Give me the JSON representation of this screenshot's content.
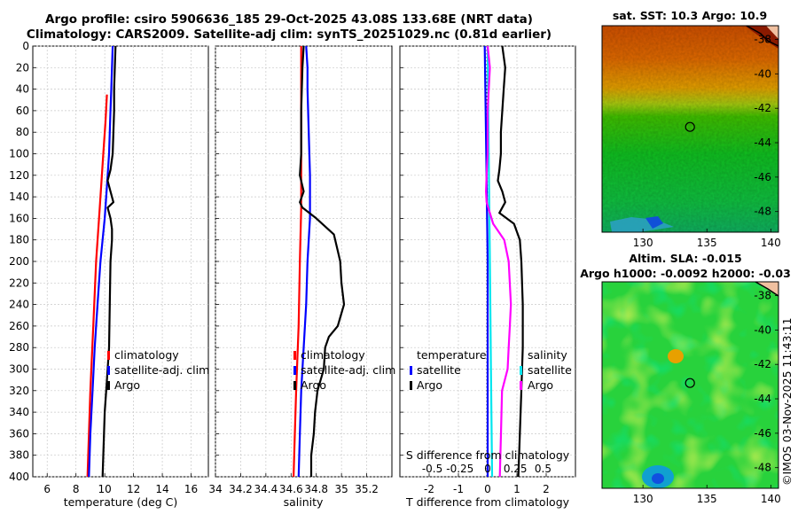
{
  "titles": {
    "line1": "Argo profile: csiro 5906636_185 29-Oct-2025 43.08S 133.68E (NRT data)",
    "line2": "Climatology: CARS2009. Satellite-adj clim: synTS_20251029.nc (0.81d earlier)"
  },
  "colors": {
    "argo": "#000000",
    "climatology": "#ff0000",
    "satellite": "#0000ff",
    "salinity_satellite": "#00e5ee",
    "salinity_argo": "#ff00ff"
  },
  "chart_data": [
    {
      "type": "line",
      "name": "temperature-profile",
      "xlabel": "temperature (deg C)",
      "ylabel": "",
      "xlim": [
        5,
        17.2
      ],
      "ylim": [
        400,
        0
      ],
      "xticks": [
        "6",
        "8",
        "10",
        "12",
        "14",
        "16"
      ],
      "xtick_values": [
        6,
        8,
        10,
        12,
        14,
        16
      ],
      "yticks": [
        "0",
        "20",
        "40",
        "60",
        "80",
        "100",
        "120",
        "140",
        "160",
        "180",
        "200",
        "220",
        "240",
        "260",
        "280",
        "300",
        "320",
        "340",
        "360",
        "380",
        "400"
      ],
      "ytick_values": [
        0,
        20,
        40,
        60,
        80,
        100,
        120,
        140,
        160,
        180,
        200,
        220,
        240,
        260,
        280,
        300,
        320,
        340,
        360,
        380,
        400
      ],
      "grid": true,
      "legend_position": "lower-right",
      "series": [
        {
          "name": "climatology",
          "color": "#ff0000",
          "width": 2.2,
          "depth": [
            45,
            70,
            100,
            130,
            160,
            200,
            260,
            320,
            380,
            400
          ],
          "values": [
            10.15,
            10.05,
            9.9,
            9.75,
            9.6,
            9.4,
            9.2,
            9.0,
            8.85,
            8.8
          ]
        },
        {
          "name": "satellite-adj. clim",
          "color": "#0000ff",
          "width": 2.2,
          "depth": [
            0,
            20,
            40,
            60,
            80,
            100,
            120,
            140,
            160,
            180,
            200,
            240,
            280,
            320,
            360,
            400
          ],
          "values": [
            10.55,
            10.5,
            10.45,
            10.4,
            10.35,
            10.3,
            10.2,
            10.1,
            10.0,
            9.85,
            9.7,
            9.5,
            9.3,
            9.15,
            9.0,
            8.9
          ]
        },
        {
          "name": "Argo",
          "color": "#000000",
          "width": 2.2,
          "depth": [
            0,
            20,
            40,
            60,
            80,
            100,
            115,
            125,
            135,
            145,
            150,
            160,
            170,
            180,
            200,
            240,
            280,
            300,
            320,
            340,
            360,
            380,
            400
          ],
          "values": [
            10.75,
            10.7,
            10.65,
            10.65,
            10.6,
            10.55,
            10.4,
            10.2,
            10.4,
            10.6,
            10.2,
            10.4,
            10.5,
            10.5,
            10.4,
            10.35,
            10.3,
            10.2,
            10.1,
            10.0,
            9.95,
            9.9,
            9.85
          ]
        }
      ]
    },
    {
      "type": "line",
      "name": "salinity-profile",
      "xlabel": "salinity",
      "ylabel": "",
      "xlim": [
        34,
        35.4
      ],
      "ylim": [
        400,
        0
      ],
      "xticks": [
        "34",
        "34.2",
        "34.4",
        "34.6",
        "34.8",
        "35",
        "35.2"
      ],
      "xtick_values": [
        34,
        34.2,
        34.4,
        34.6,
        34.8,
        35,
        35.2
      ],
      "grid": true,
      "legend_position": "lower-right",
      "series": [
        {
          "name": "climatology",
          "color": "#ff0000",
          "width": 2.2,
          "depth": [
            0,
            50,
            100,
            150,
            200,
            260,
            320,
            380,
            400
          ],
          "values": [
            34.68,
            34.68,
            34.68,
            34.68,
            34.67,
            34.66,
            34.64,
            34.625,
            34.62
          ]
        },
        {
          "name": "satellite-adj. clim",
          "color": "#0000ff",
          "width": 2.2,
          "depth": [
            0,
            20,
            40,
            80,
            120,
            140,
            160,
            180,
            200,
            240,
            280,
            320,
            360,
            400
          ],
          "values": [
            34.72,
            34.73,
            34.73,
            34.74,
            34.75,
            34.75,
            34.75,
            34.74,
            34.73,
            34.72,
            34.7,
            34.68,
            34.67,
            34.66
          ]
        },
        {
          "name": "Argo",
          "color": "#000000",
          "width": 2.2,
          "depth": [
            0,
            20,
            60,
            100,
            120,
            135,
            145,
            150,
            160,
            175,
            190,
            200,
            220,
            240,
            260,
            270,
            280,
            300,
            320,
            340,
            360,
            380,
            400
          ],
          "values": [
            34.7,
            34.69,
            34.68,
            34.68,
            34.67,
            34.7,
            34.67,
            34.69,
            34.8,
            34.94,
            34.97,
            34.99,
            35.0,
            35.02,
            34.97,
            34.9,
            34.87,
            34.86,
            34.81,
            34.79,
            34.78,
            34.76,
            34.76
          ]
        }
      ]
    },
    {
      "type": "line",
      "name": "difference-profile",
      "xlabel": "T difference from climatology",
      "top_label": "S difference from climatology",
      "ylabel": "",
      "xlim": [
        -3,
        3
      ],
      "ylim": [
        400,
        0
      ],
      "xticks": [
        "-2",
        "-1",
        "0",
        "1",
        "2"
      ],
      "xtick_values": [
        -2,
        -1,
        0,
        1,
        2
      ],
      "s_ticks": [
        "-0.5",
        "-0.25",
        "0",
        "0.25",
        "0.5"
      ],
      "s_tick_values": [
        -0.5,
        -0.25,
        0,
        0.25,
        0.5
      ],
      "grid": true,
      "legend_position": "lower",
      "series": [
        {
          "name": "temperature satellite",
          "color": "#0000ff",
          "width": 2.2,
          "depth": [
            0,
            100,
            200,
            300,
            400
          ],
          "values": [
            -0.1,
            -0.05,
            0.0,
            0.0,
            0.0
          ]
        },
        {
          "name": "temperature Argo",
          "color": "#000000",
          "width": 2.2,
          "depth": [
            0,
            20,
            40,
            60,
            80,
            100,
            115,
            125,
            135,
            145,
            155,
            165,
            180,
            200,
            240,
            280,
            320,
            360,
            400
          ],
          "values": [
            0.5,
            0.6,
            0.55,
            0.5,
            0.45,
            0.45,
            0.4,
            0.35,
            0.5,
            0.6,
            0.4,
            0.9,
            1.1,
            1.15,
            1.2,
            1.2,
            1.15,
            1.1,
            1.05
          ]
        },
        {
          "name": "salinity satellite",
          "color": "#00e5ee",
          "width": 2.2,
          "depth": [
            0,
            100,
            200,
            300,
            400
          ],
          "values": [
            0.0,
            0.01,
            0.02,
            0.03,
            0.04
          ]
        },
        {
          "name": "salinity Argo",
          "color": "#ff00ff",
          "width": 2.2,
          "depth": [
            0,
            20,
            60,
            100,
            120,
            135,
            145,
            155,
            165,
            180,
            200,
            240,
            260,
            280,
            300,
            320,
            360,
            400
          ],
          "values": [
            0.0,
            0.02,
            0.0,
            0.0,
            -0.01,
            -0.015,
            -0.01,
            0.02,
            0.05,
            0.15,
            0.19,
            0.21,
            0.2,
            0.19,
            0.18,
            0.13,
            0.12,
            0.11
          ]
        }
      ]
    },
    {
      "type": "heatmap",
      "name": "sst-map",
      "title": "sat. SST: 10.3 Argo: 10.9",
      "xticks": [
        "130",
        "135",
        "140"
      ],
      "xtick_values": [
        130,
        135,
        140
      ],
      "yticks": [
        "-38",
        "-40",
        "-42",
        "-44",
        "-46",
        "-48"
      ],
      "ytick_values": [
        -38,
        -40,
        -42,
        -44,
        -46,
        -48
      ],
      "xlim": [
        126.8,
        140.6
      ],
      "ylim": [
        -49.2,
        -37.2
      ],
      "marker": [
        133.68,
        -43.08
      ]
    },
    {
      "type": "heatmap",
      "name": "sla-map",
      "title_line1": "Altim. SLA: -0.015",
      "title_line2": "Argo h1000: -0.0092 h2000: -0.03",
      "xticks": [
        "130",
        "135",
        "140"
      ],
      "xtick_values": [
        130,
        135,
        140
      ],
      "yticks": [
        "-38",
        "-40",
        "-42",
        "-44",
        "-46",
        "-48"
      ],
      "ytick_values": [
        -38,
        -40,
        -42,
        -44,
        -46,
        -48
      ],
      "xlim": [
        126.8,
        140.6
      ],
      "ylim": [
        -49.2,
        -37.2
      ],
      "marker": [
        133.68,
        -43.08
      ]
    }
  ],
  "legend_temp": [
    "climatology",
    "satellite-adj. clim",
    "Argo"
  ],
  "legend_sal": [
    "climatology",
    "satellite-adj. clim",
    "Argo"
  ],
  "legend_diff": {
    "temperature_header": "temperature",
    "salinity_header": "salinity",
    "t_items": [
      "satellite",
      "Argo"
    ],
    "s_items": [
      "satellite",
      "Argo"
    ]
  },
  "watermark": "©IMOS 03-Nov-2025 11:43:11"
}
